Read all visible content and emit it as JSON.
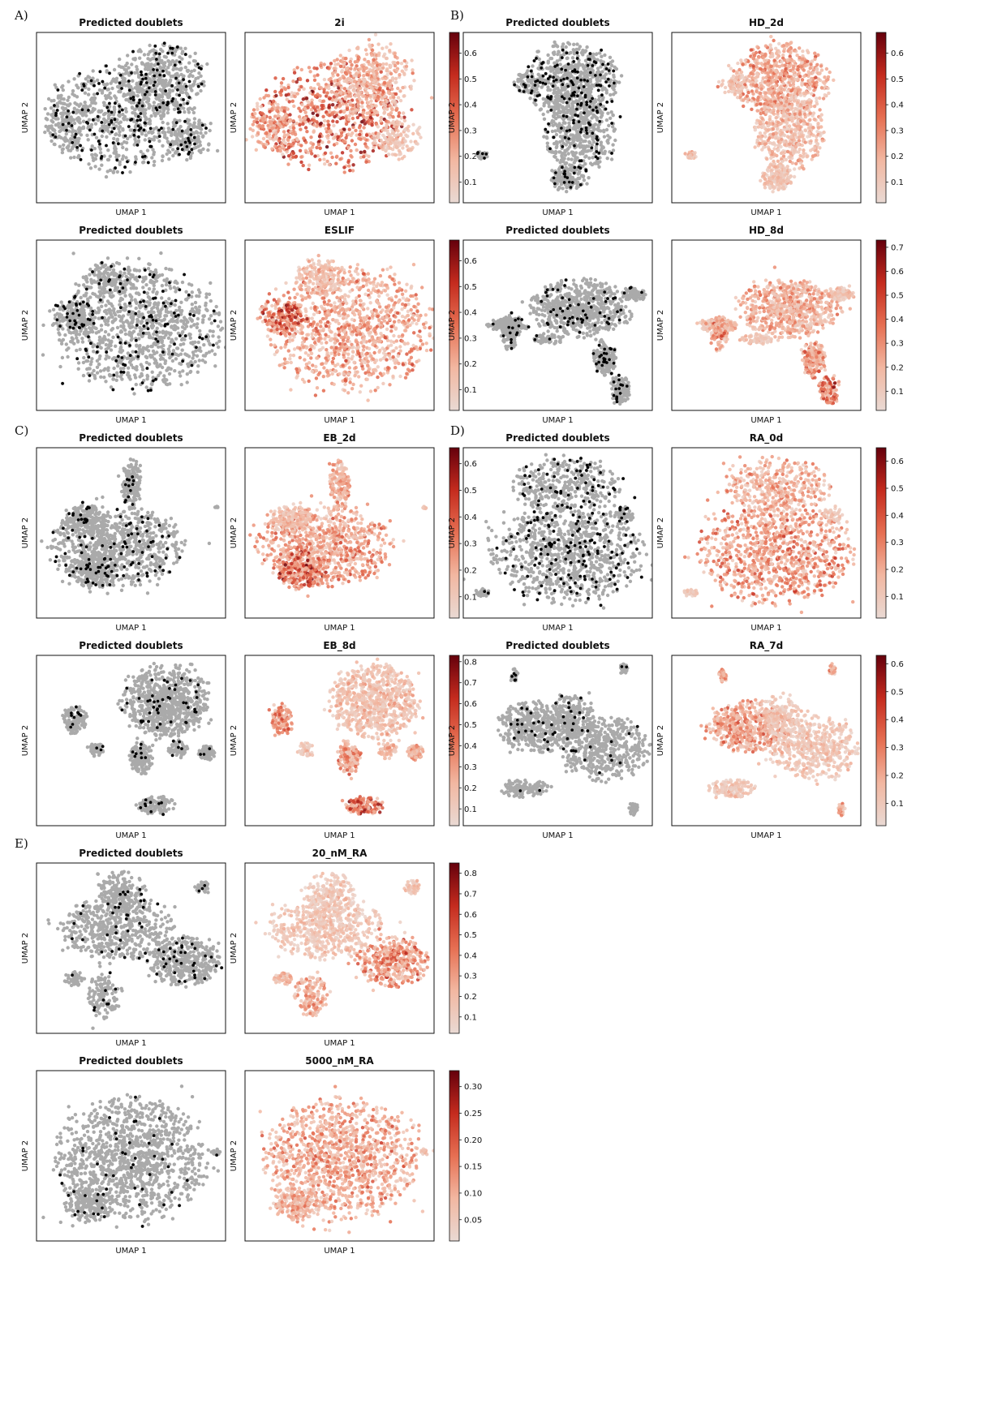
{
  "figure": {
    "point_color_gray": "#aaaaaa",
    "doublet_color": "#000000",
    "colormap": [
      "#e9d9d3",
      "#f2b7a1",
      "#e66f52",
      "#c42b1e",
      "#65000c"
    ],
    "section_labels": [
      "A)",
      "B)",
      "C)",
      "D)",
      "E)"
    ]
  },
  "chart_data": [
    {
      "type": "scatter",
      "section": "A)",
      "title": "Predicted doublets",
      "xlabel": "UMAP 1",
      "ylabel": "UMAP 2",
      "shape": "blob-a",
      "doublet_fraction": 0.12
    },
    {
      "type": "scatter",
      "section": "A)",
      "title": "2i",
      "xlabel": "UMAP 1",
      "ylabel": "UMAP 2",
      "shape": "blob-a",
      "colorbar": {
        "ticks": [
          "0.1",
          "0.2",
          "0.3",
          "0.4",
          "0.5",
          "0.6"
        ],
        "range": [
          0.02,
          0.68
        ]
      }
    },
    {
      "type": "scatter",
      "section": "B)",
      "title": "Predicted doublets",
      "xlabel": "UMAP 1",
      "ylabel": "UMAP 2",
      "shape": "tall-b",
      "doublet_fraction": 0.14
    },
    {
      "type": "scatter",
      "section": "B)",
      "title": "HD_2d",
      "xlabel": "UMAP 1",
      "ylabel": "UMAP 2",
      "shape": "tall-b",
      "colorbar": {
        "ticks": [
          "0.1",
          "0.2",
          "0.3",
          "0.4",
          "0.5",
          "0.6"
        ],
        "range": [
          0.02,
          0.68
        ]
      }
    },
    {
      "type": "scatter",
      "section": "A)",
      "title": "Predicted doublets",
      "xlabel": "UMAP 1",
      "ylabel": "UMAP 2",
      "shape": "blob-eslif",
      "doublet_fraction": 0.11
    },
    {
      "type": "scatter",
      "section": "A)",
      "title": "ESLIF",
      "xlabel": "UMAP 1",
      "ylabel": "UMAP 2",
      "shape": "blob-eslif",
      "colorbar": {
        "ticks": [
          "0.1",
          "0.2",
          "0.3",
          "0.4",
          "0.5",
          "0.6"
        ],
        "range": [
          0.02,
          0.68
        ]
      }
    },
    {
      "type": "scatter",
      "section": "B)",
      "title": "Predicted doublets",
      "xlabel": "UMAP 1",
      "ylabel": "UMAP 2",
      "shape": "spread-b",
      "doublet_fraction": 0.09
    },
    {
      "type": "scatter",
      "section": "B)",
      "title": "HD_8d",
      "xlabel": "UMAP 1",
      "ylabel": "UMAP 2",
      "shape": "spread-b",
      "colorbar": {
        "ticks": [
          "0.1",
          "0.2",
          "0.3",
          "0.4",
          "0.5",
          "0.6",
          "0.7"
        ],
        "range": [
          0.02,
          0.73
        ]
      }
    },
    {
      "type": "scatter",
      "section": "C)",
      "title": "Predicted doublets",
      "xlabel": "UMAP 1",
      "ylabel": "UMAP 2",
      "shape": "eb2",
      "doublet_fraction": 0.08
    },
    {
      "type": "scatter",
      "section": "C)",
      "title": "EB_2d",
      "xlabel": "UMAP 1",
      "ylabel": "UMAP 2",
      "shape": "eb2",
      "colorbar": {
        "ticks": [
          "0.1",
          "0.2",
          "0.3",
          "0.4",
          "0.5",
          "0.6"
        ],
        "range": [
          0.02,
          0.66
        ]
      }
    },
    {
      "type": "scatter",
      "section": "D)",
      "title": "Predicted doublets",
      "xlabel": "UMAP 1",
      "ylabel": "UMAP 2",
      "shape": "ra0",
      "doublet_fraction": 0.14
    },
    {
      "type": "scatter",
      "section": "D)",
      "title": "RA_0d",
      "xlabel": "UMAP 1",
      "ylabel": "UMAP 2",
      "shape": "ra0",
      "colorbar": {
        "ticks": [
          "0.1",
          "0.2",
          "0.3",
          "0.4",
          "0.5",
          "0.6"
        ],
        "range": [
          0.02,
          0.65
        ]
      }
    },
    {
      "type": "scatter",
      "section": "C)",
      "title": "Predicted doublets",
      "xlabel": "UMAP 1",
      "ylabel": "UMAP 2",
      "shape": "eb8",
      "doublet_fraction": 0.06
    },
    {
      "type": "scatter",
      "section": "C)",
      "title": "EB_8d",
      "xlabel": "UMAP 1",
      "ylabel": "UMAP 2",
      "shape": "eb8",
      "colorbar": {
        "ticks": [
          "0.1",
          "0.2",
          "0.3",
          "0.4",
          "0.5",
          "0.6",
          "0.7",
          "0.8"
        ],
        "range": [
          0.02,
          0.83
        ]
      }
    },
    {
      "type": "scatter",
      "section": "D)",
      "title": "Predicted doublets",
      "xlabel": "UMAP 1",
      "ylabel": "UMAP 2",
      "shape": "ra7",
      "doublet_fraction": 0.05
    },
    {
      "type": "scatter",
      "section": "D)",
      "title": "RA_7d",
      "xlabel": "UMAP 1",
      "ylabel": "UMAP 2",
      "shape": "ra7",
      "colorbar": {
        "ticks": [
          "0.1",
          "0.2",
          "0.3",
          "0.4",
          "0.5",
          "0.6"
        ],
        "range": [
          0.02,
          0.63
        ]
      }
    },
    {
      "type": "scatter",
      "section": "E)",
      "title": "Predicted doublets",
      "xlabel": "UMAP 1",
      "ylabel": "UMAP 2",
      "shape": "ra20",
      "doublet_fraction": 0.06
    },
    {
      "type": "scatter",
      "section": "E)",
      "title": "20_nM_RA",
      "xlabel": "UMAP 1",
      "ylabel": "UMAP 2",
      "shape": "ra20",
      "colorbar": {
        "ticks": [
          "0.1",
          "0.2",
          "0.3",
          "0.4",
          "0.5",
          "0.6",
          "0.7",
          "0.8"
        ],
        "range": [
          0.02,
          0.85
        ]
      }
    },
    {
      "type": "scatter",
      "section": "E)",
      "title": "Predicted doublets",
      "xlabel": "UMAP 1",
      "ylabel": "UMAP 2",
      "shape": "ra5000",
      "doublet_fraction": 0.03
    },
    {
      "type": "scatter",
      "section": "E)",
      "title": "5000_nM_RA",
      "xlabel": "UMAP 1",
      "ylabel": "UMAP 2",
      "shape": "ra5000",
      "colorbar": {
        "ticks": [
          "0.05",
          "0.10",
          "0.15",
          "0.20",
          "0.25",
          "0.30"
        ],
        "range": [
          0.01,
          0.33
        ]
      }
    }
  ]
}
